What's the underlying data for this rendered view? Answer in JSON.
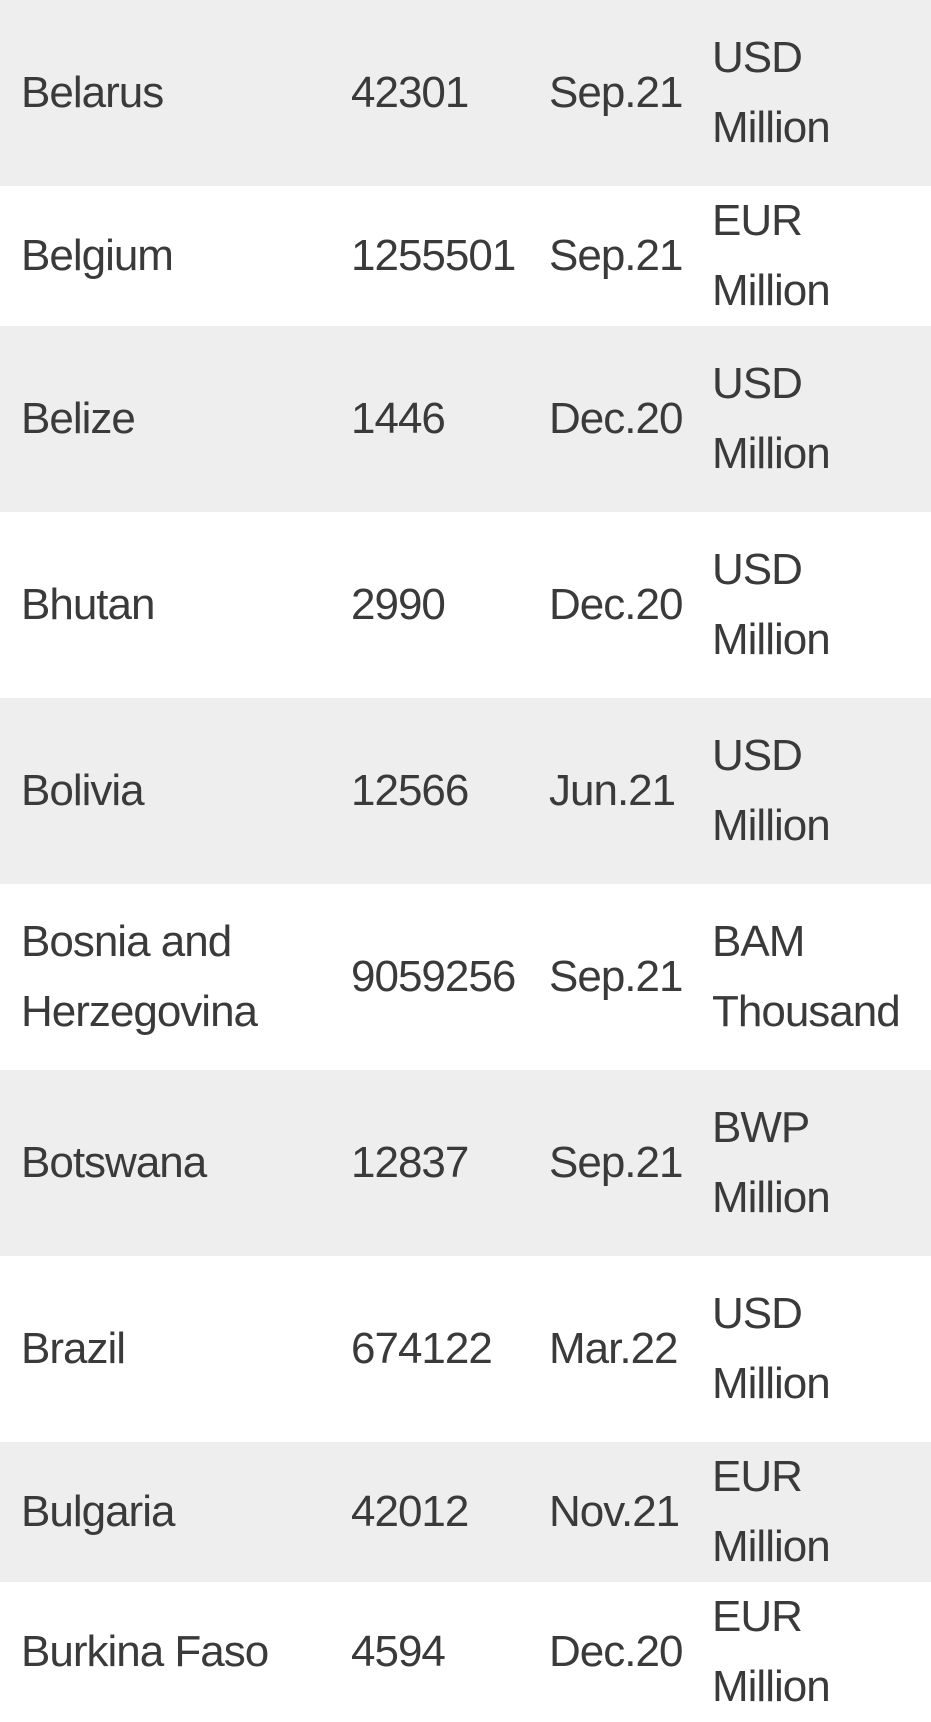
{
  "table": {
    "rows": [
      {
        "country": "Belarus",
        "value": "42301",
        "date": "Sep.21",
        "unit": "USD Million"
      },
      {
        "country": "Belgium",
        "value": "1255501",
        "date": "Sep.21",
        "unit": "EUR Million"
      },
      {
        "country": "Belize",
        "value": "1446",
        "date": "Dec.20",
        "unit": "USD Million"
      },
      {
        "country": "Bhutan",
        "value": "2990",
        "date": "Dec.20",
        "unit": "USD Million"
      },
      {
        "country": "Bolivia",
        "value": "12566",
        "date": "Jun.21",
        "unit": "USD Million"
      },
      {
        "country": "Bosnia and Herzegovina",
        "value": "9059256",
        "date": "Sep.21",
        "unit": "BAM Thousand"
      },
      {
        "country": "Botswana",
        "value": "12837",
        "date": "Sep.21",
        "unit": "BWP Million"
      },
      {
        "country": "Brazil",
        "value": "674122",
        "date": "Mar.22",
        "unit": "USD Million"
      },
      {
        "country": "Bulgaria",
        "value": "42012",
        "date": "Nov.21",
        "unit": "EUR Million"
      },
      {
        "country": "Burkina Faso",
        "value": "4594",
        "date": "Dec.20",
        "unit": "EUR Million"
      }
    ]
  }
}
